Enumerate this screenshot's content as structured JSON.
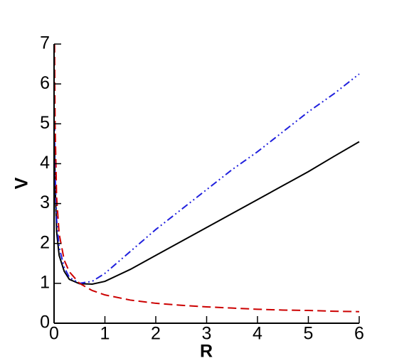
{
  "chart_data": {
    "type": "line",
    "x_label": "R",
    "y_label": "V",
    "x": [
      0.01,
      0.02,
      0.05,
      0.1,
      0.2,
      0.3,
      0.5,
      0.75,
      1,
      1.5,
      2,
      2.5,
      3,
      3.5,
      4,
      4.5,
      5,
      5.5,
      6
    ],
    "series": [
      {
        "color": "#000000",
        "dash": "",
        "values": [
          4.5,
          3.5,
          2.3,
          1.7,
          1.3,
          1.1,
          0.99,
          0.98,
          1.05,
          1.35,
          1.7,
          2.05,
          2.4,
          2.75,
          3.1,
          3.45,
          3.8,
          4.18,
          4.55
        ]
      },
      {
        "color": "#2020dd",
        "dash": "10,4,2,4,2,4",
        "values": [
          5.0,
          3.8,
          2.6,
          1.9,
          1.4,
          1.15,
          1.0,
          1.05,
          1.25,
          1.8,
          2.35,
          2.85,
          3.35,
          3.85,
          4.3,
          4.8,
          5.3,
          5.75,
          6.25
        ]
      },
      {
        "color": "#cc0000",
        "dash": "12,6",
        "values": [
          7.0,
          5.0,
          3.16,
          2.24,
          1.58,
          1.29,
          1.0,
          0.82,
          0.71,
          0.58,
          0.5,
          0.45,
          0.41,
          0.38,
          0.35,
          0.33,
          0.32,
          0.3,
          0.29
        ]
      }
    ],
    "xlim": [
      0,
      6
    ],
    "ylim": [
      0,
      7
    ],
    "xticks": [
      0,
      1,
      2,
      3,
      4,
      5,
      6
    ],
    "yticks": [
      0,
      1,
      2,
      3,
      4,
      5,
      6,
      7
    ]
  }
}
